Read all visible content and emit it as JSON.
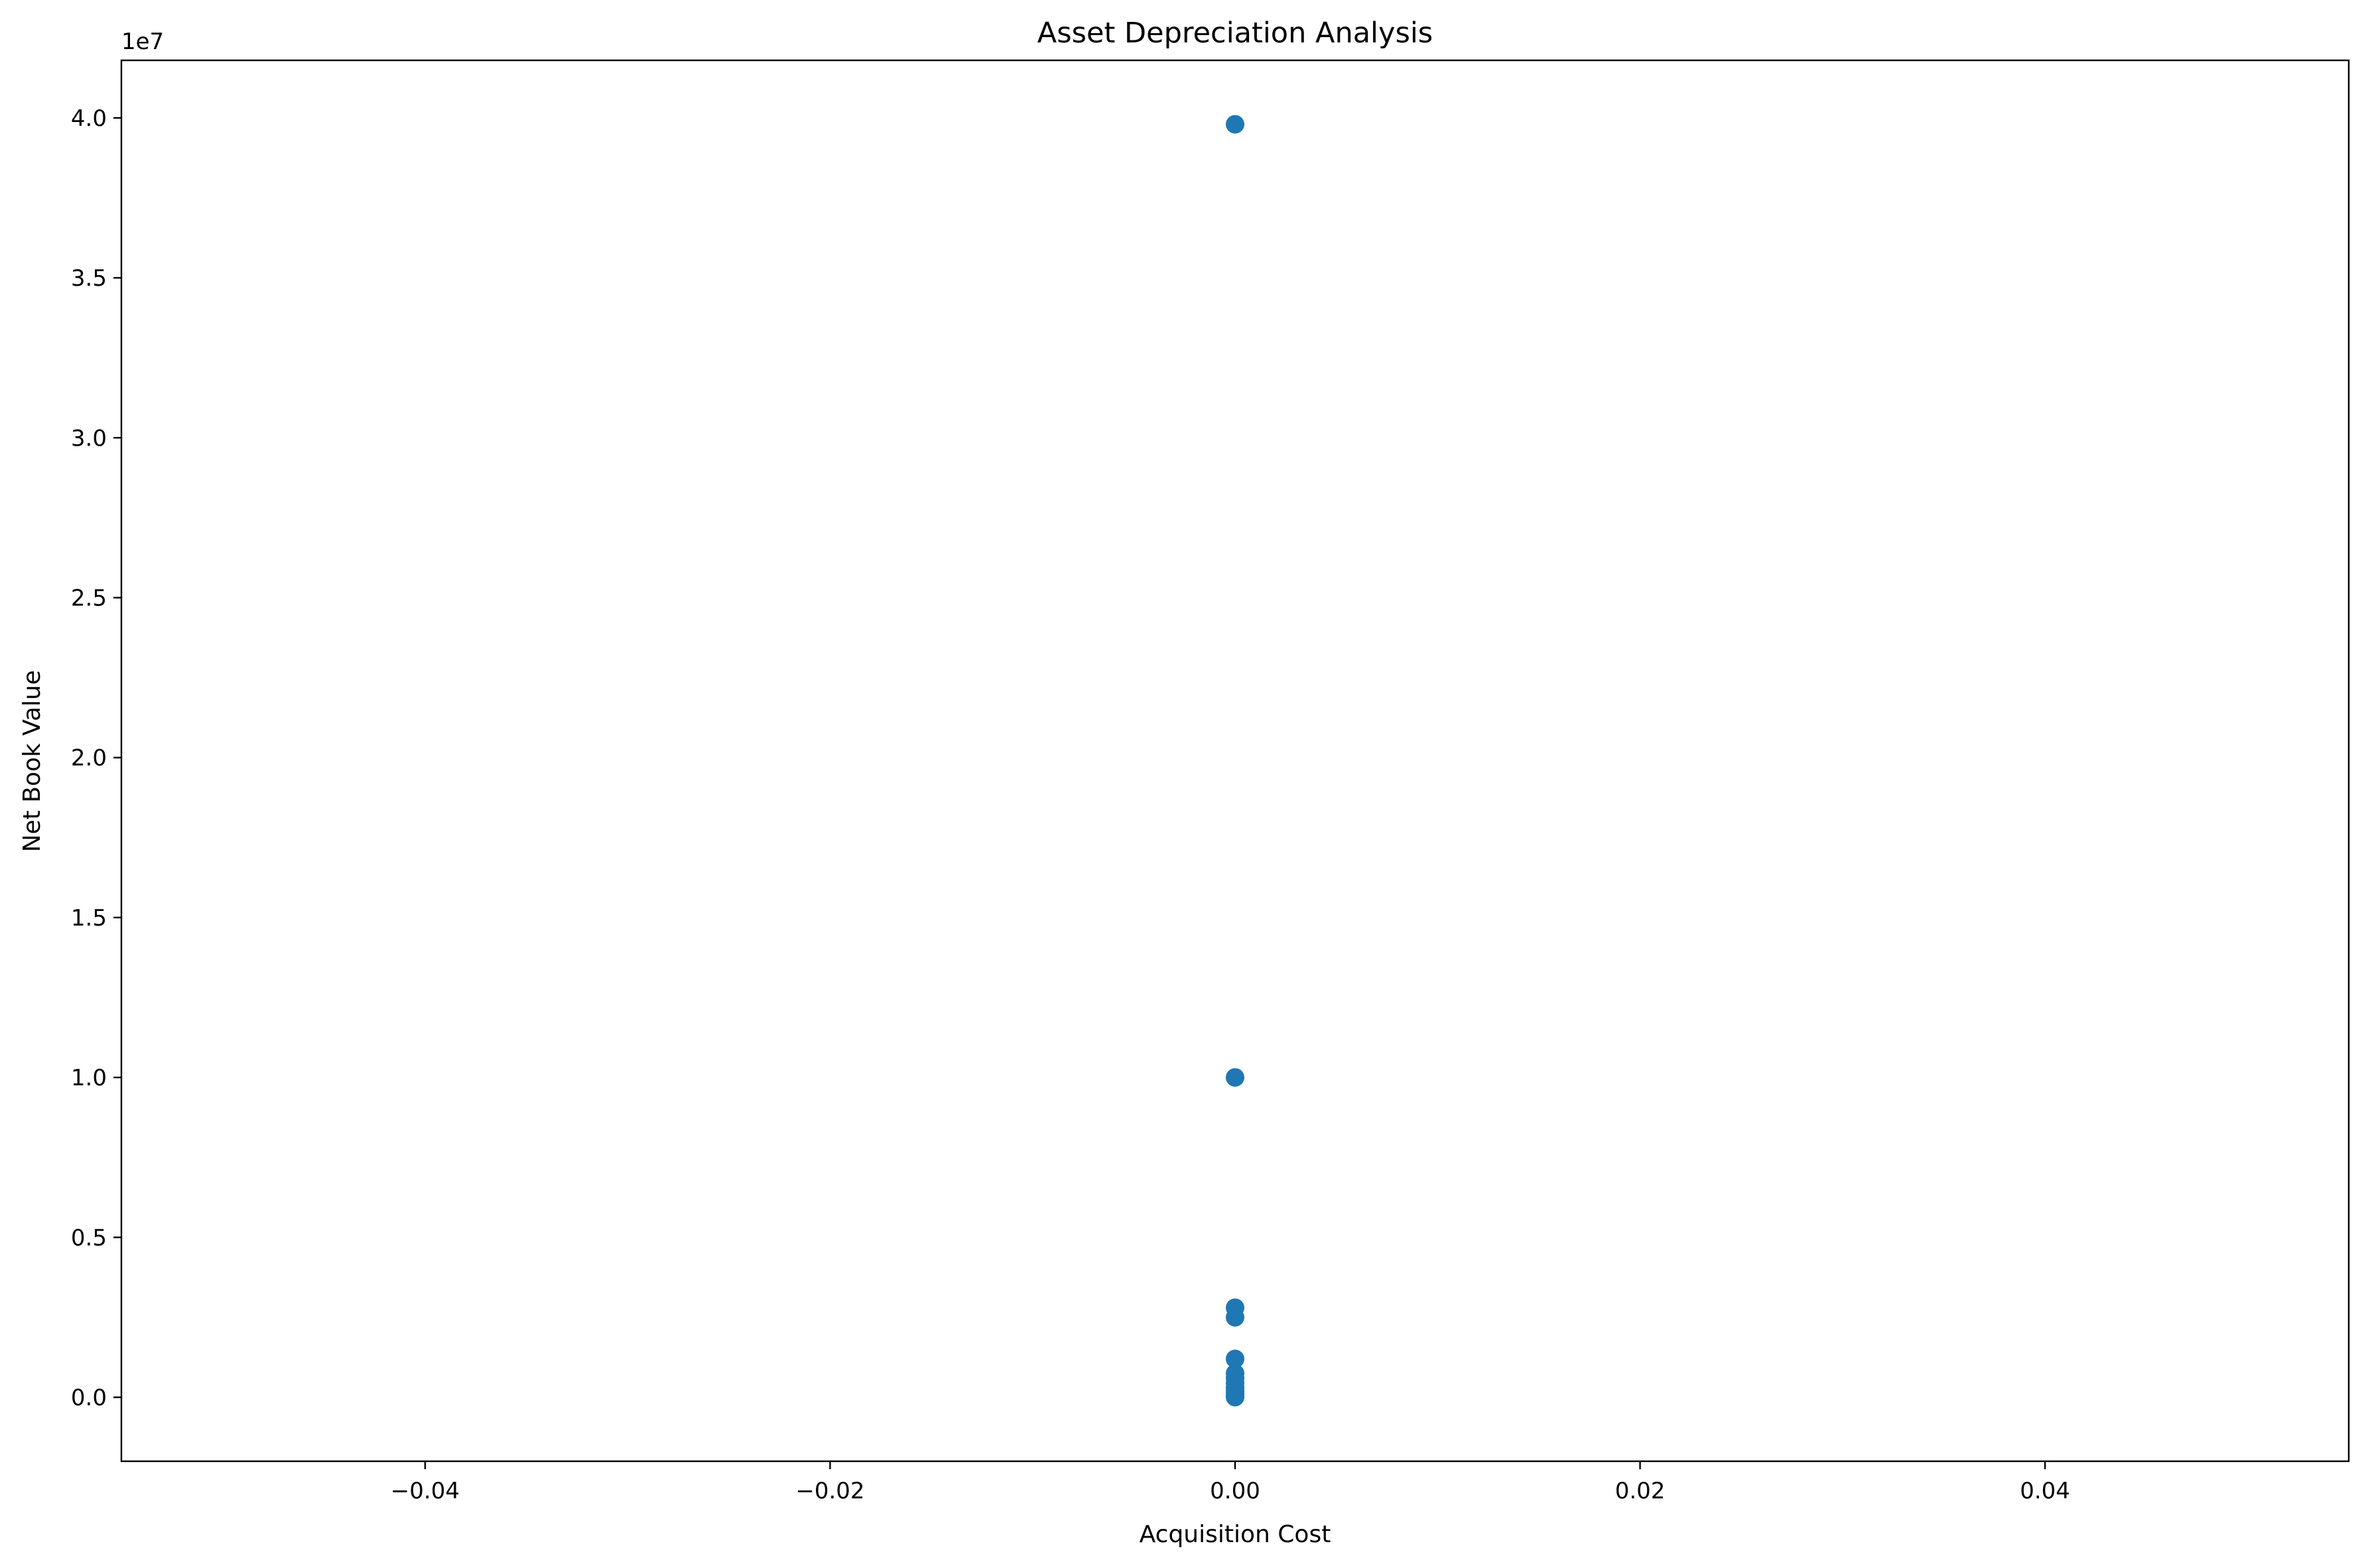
{
  "chart_data": {
    "type": "scatter",
    "title": "Asset Depreciation Analysis",
    "xlabel": "Acquisition Cost",
    "ylabel": "Net Book Value",
    "y_offset_label": "1e7",
    "y_scale_factor": 10000000,
    "xlim": [
      -0.055,
      0.055
    ],
    "ylim": [
      -2000000,
      41800000
    ],
    "x_ticks": [
      -0.04,
      -0.02,
      0.0,
      0.02,
      0.04
    ],
    "x_tick_labels": [
      "−0.04",
      "−0.02",
      "0.00",
      "0.02",
      "0.04"
    ],
    "y_ticks": [
      0,
      5000000,
      10000000,
      15000000,
      20000000,
      25000000,
      30000000,
      35000000,
      40000000
    ],
    "y_tick_labels": [
      "0.0",
      "0.5",
      "1.0",
      "1.5",
      "2.0",
      "2.5",
      "3.0",
      "3.5",
      "4.0"
    ],
    "grid": false,
    "marker_color": "#1f77b4",
    "series": [
      {
        "x": [
          0,
          0,
          0,
          0,
          0,
          0,
          0,
          0,
          0,
          0,
          0,
          0,
          0,
          0
        ],
        "y": [
          39800000,
          10000000,
          2800000,
          2500000,
          1200000,
          750000,
          600000,
          450000,
          300000,
          200000,
          120000,
          60000,
          20000,
          5000
        ]
      }
    ]
  }
}
